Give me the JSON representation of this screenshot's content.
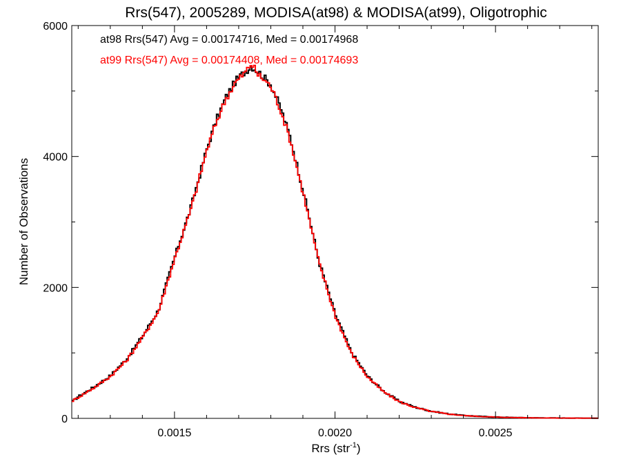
{
  "chart_data": {
    "type": "line",
    "style": "step-histogram",
    "title": "Rrs(547), 2005289, MODISA(at98) & MODISA(at99), Oligotrophic",
    "xlabel": "Rrs (str",
    "xlabel_sup": "-1",
    "xlabel_close": ")",
    "ylabel": "Number of Observations",
    "xlim": [
      0.00118,
      0.00282
    ],
    "ylim": [
      0,
      6000
    ],
    "x_ticks": [
      0.0015,
      0.002,
      0.0025
    ],
    "x_tick_labels": [
      "0.0015",
      "0.0020",
      "0.0025"
    ],
    "y_ticks": [
      0,
      2000,
      4000,
      6000
    ],
    "y_tick_labels": [
      "0",
      "2000",
      "4000",
      "6000"
    ],
    "grid": false,
    "annotations": [
      {
        "text": "at98 Rrs(547) Avg = 0.00174716, Med = 0.00174968",
        "color": "#000000"
      },
      {
        "text": "at99 Rrs(547) Avg = 0.00174408, Med = 0.00174693",
        "color": "#ff0000"
      }
    ],
    "x": [
      0.00118,
      0.0012,
      0.00125,
      0.0013,
      0.00135,
      0.0014,
      0.00145,
      0.0015,
      0.00155,
      0.0016,
      0.00163,
      0.00166,
      0.00169,
      0.00172,
      0.00174,
      0.00176,
      0.00178,
      0.0018,
      0.00183,
      0.00186,
      0.0019,
      0.00195,
      0.002,
      0.00205,
      0.0021,
      0.00215,
      0.0022,
      0.00225,
      0.0023,
      0.00235,
      0.0024,
      0.00245,
      0.0025,
      0.00255,
      0.0026,
      0.00265,
      0.0027,
      0.00275,
      0.00282
    ],
    "series": [
      {
        "name": "at98",
        "color": "#000000",
        "values": [
          250,
          330,
          480,
          650,
          900,
          1250,
          1650,
          2450,
          3200,
          4100,
          4550,
          4900,
          5150,
          5300,
          5380,
          5300,
          5200,
          5100,
          4750,
          4300,
          3500,
          2400,
          1600,
          1020,
          650,
          420,
          260,
          170,
          110,
          70,
          45,
          30,
          20,
          14,
          10,
          7,
          5,
          4,
          3
        ]
      },
      {
        "name": "at99",
        "color": "#ff0000",
        "values": [
          260,
          320,
          470,
          640,
          880,
          1230,
          1630,
          2430,
          3170,
          4080,
          4520,
          4880,
          5130,
          5280,
          5420,
          5250,
          5170,
          5070,
          4720,
          4260,
          3460,
          2380,
          1580,
          1000,
          640,
          410,
          255,
          165,
          105,
          68,
          44,
          29,
          19,
          13,
          9,
          6,
          5,
          4,
          3
        ]
      }
    ]
  }
}
